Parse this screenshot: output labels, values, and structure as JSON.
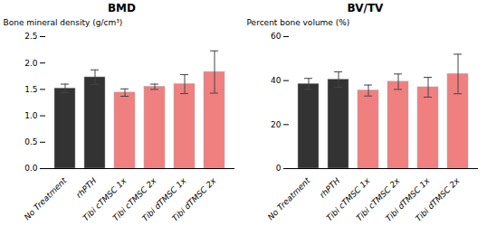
{
  "chart_data": [
    {
      "type": "bar",
      "title": "BMD",
      "ylabel": "Bone mineral density (g/cm³)",
      "categories": [
        "No Treatment",
        "rhPTH",
        "Tibi cTMSC 1x",
        "Tibi cTMSC 2x",
        "Tibi dTMSC 1x",
        "Tibi dTMSC 2x"
      ],
      "values": [
        1.52,
        1.73,
        1.44,
        1.55,
        1.6,
        1.83
      ],
      "errors": [
        0.08,
        0.14,
        0.07,
        0.05,
        0.18,
        0.4
      ],
      "colors": [
        "#333333",
        "#333333",
        "#f08080",
        "#f08080",
        "#f08080",
        "#f08080"
      ],
      "ylim": [
        0,
        2.5
      ],
      "yticks": [
        {
          "value": 0,
          "label": "0.0"
        },
        0.5,
        {
          "value": 1,
          "label": "1.0"
        },
        1.5,
        {
          "value": 2,
          "label": "2.0"
        },
        2.5
      ]
    },
    {
      "type": "bar",
      "title": "BV/TV",
      "ylabel": "Percent bone volume (%)",
      "categories": [
        "No Treatment",
        "rhPTH",
        "Tibi cTMSC 1x",
        "Tibi cTMSC 2x",
        "Tibi dTMSC 1x",
        "Tibi dTMSC 2x"
      ],
      "values": [
        38.5,
        40.5,
        35.5,
        39.5,
        37.0,
        43.0
      ],
      "errors": [
        2.5,
        3.5,
        2.5,
        3.5,
        4.5,
        9.0
      ],
      "colors": [
        "#333333",
        "#333333",
        "#f08080",
        "#f08080",
        "#f08080",
        "#f08080"
      ],
      "ylim": [
        0,
        60
      ],
      "yticks": [
        0,
        20,
        40,
        60
      ]
    }
  ]
}
